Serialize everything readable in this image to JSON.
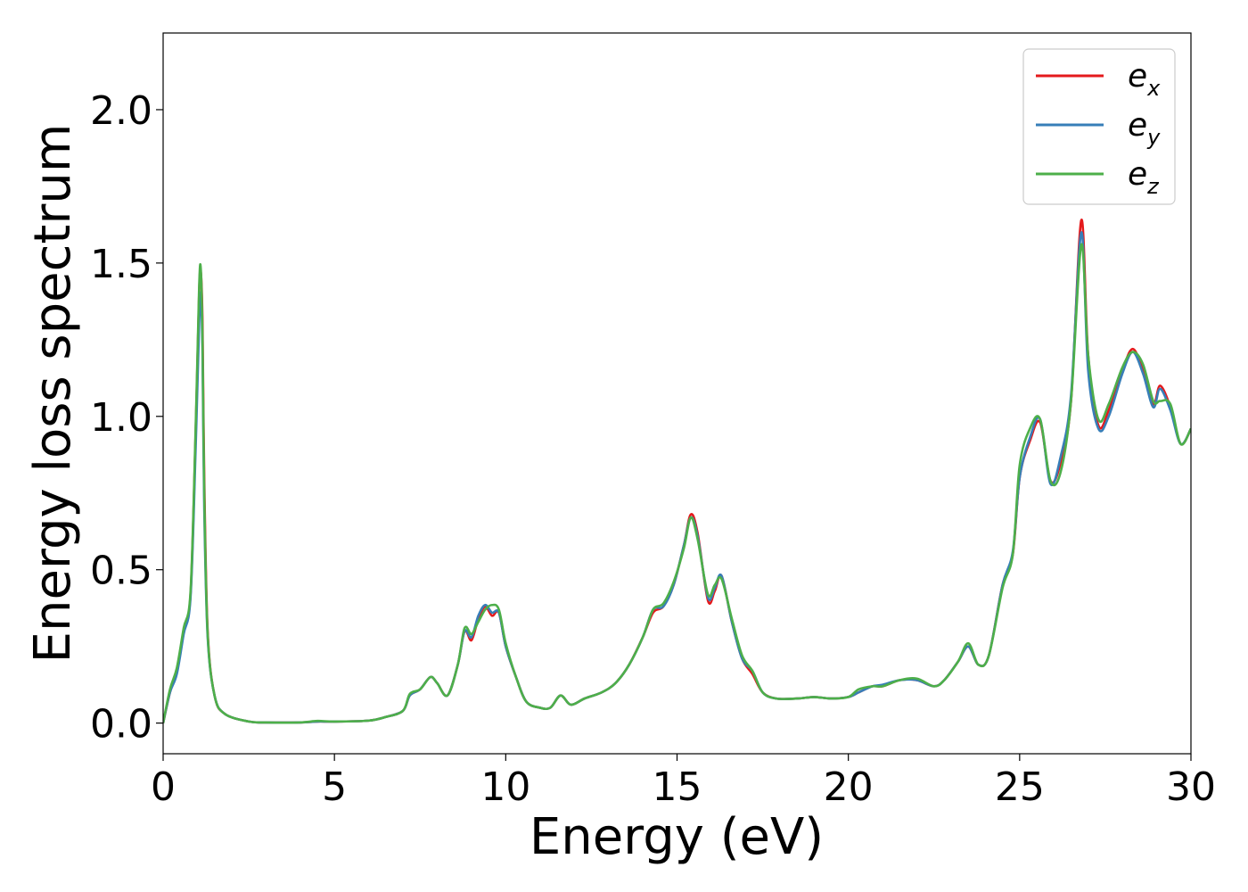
{
  "chart_data": {
    "type": "line",
    "title": "",
    "xlabel": "Energy (eV)",
    "ylabel": "Energy loss spectrum",
    "xlim": [
      0,
      30
    ],
    "ylim": [
      -0.1,
      2.25
    ],
    "xticks": [
      0,
      5,
      10,
      15,
      20,
      25,
      30
    ],
    "xtick_labels": [
      "0",
      "5",
      "10",
      "15",
      "20",
      "25",
      "30"
    ],
    "yticks": [
      0.0,
      0.5,
      1.0,
      1.5,
      2.0
    ],
    "ytick_labels": [
      "0.0",
      "0.5",
      "1.0",
      "1.5",
      "2.0"
    ],
    "grid": false,
    "legend_position": "top-right",
    "series": [
      {
        "name": "e_x",
        "base": "e",
        "sub": "x",
        "color": "#e41a1c",
        "x": [
          0,
          0.2,
          0.4,
          0.6,
          0.8,
          0.95,
          1.05,
          1.1,
          1.15,
          1.2,
          1.3,
          1.5,
          1.8,
          2.5,
          3,
          4,
          4.5,
          5,
          6,
          6.5,
          7,
          7.2,
          7.5,
          7.8,
          8,
          8.3,
          8.6,
          8.8,
          9,
          9.2,
          9.4,
          9.6,
          9.8,
          10,
          10.3,
          10.6,
          11,
          11.3,
          11.6,
          11.9,
          12.3,
          12.8,
          13.2,
          13.6,
          14,
          14.3,
          14.6,
          14.9,
          15.2,
          15.4,
          15.6,
          15.9,
          16.1,
          16.3,
          16.6,
          16.9,
          17.2,
          17.5,
          17.9,
          18.5,
          19,
          19.5,
          20,
          20.3,
          20.7,
          21,
          21.5,
          22,
          22.5,
          22.8,
          23.2,
          23.5,
          23.8,
          24.1,
          24.5,
          24.8,
          25,
          25.3,
          25.6,
          25.9,
          26.2,
          26.5,
          26.8,
          27,
          27.3,
          27.6,
          28,
          28.3,
          28.6,
          28.9,
          29.1,
          29.4,
          29.7,
          30
        ],
        "y": [
          0,
          0.1,
          0.17,
          0.3,
          0.42,
          0.95,
          1.4,
          1.47,
          1.3,
          0.8,
          0.3,
          0.09,
          0.03,
          0.005,
          0.002,
          0.002,
          0.005,
          0.005,
          0.008,
          0.02,
          0.04,
          0.09,
          0.11,
          0.15,
          0.13,
          0.09,
          0.19,
          0.3,
          0.27,
          0.34,
          0.38,
          0.35,
          0.36,
          0.25,
          0.15,
          0.07,
          0.05,
          0.05,
          0.09,
          0.06,
          0.08,
          0.1,
          0.13,
          0.19,
          0.28,
          0.36,
          0.38,
          0.45,
          0.58,
          0.68,
          0.62,
          0.4,
          0.43,
          0.48,
          0.33,
          0.21,
          0.16,
          0.1,
          0.08,
          0.08,
          0.085,
          0.08,
          0.085,
          0.1,
          0.12,
          0.12,
          0.14,
          0.14,
          0.12,
          0.14,
          0.2,
          0.25,
          0.19,
          0.22,
          0.45,
          0.55,
          0.8,
          0.92,
          0.98,
          0.79,
          0.85,
          1.05,
          1.64,
          1.2,
          0.97,
          1.02,
          1.15,
          1.22,
          1.15,
          1.04,
          1.1,
          1.03,
          0.91,
          0.96
        ]
      },
      {
        "name": "e_y",
        "base": "e",
        "sub": "y",
        "color": "#377eb8",
        "x": [
          0,
          0.2,
          0.4,
          0.6,
          0.8,
          0.95,
          1.05,
          1.1,
          1.15,
          1.2,
          1.3,
          1.5,
          1.8,
          2.5,
          3,
          4,
          4.5,
          5,
          6,
          6.5,
          7,
          7.2,
          7.5,
          7.8,
          8,
          8.3,
          8.6,
          8.8,
          9,
          9.2,
          9.4,
          9.6,
          9.8,
          10,
          10.3,
          10.6,
          11,
          11.3,
          11.6,
          11.9,
          12.3,
          12.8,
          13.2,
          13.6,
          14,
          14.3,
          14.6,
          14.9,
          15.2,
          15.4,
          15.6,
          15.9,
          16.1,
          16.3,
          16.6,
          16.9,
          17.2,
          17.5,
          17.9,
          18.5,
          19,
          19.5,
          20,
          20.3,
          20.7,
          21,
          21.5,
          22,
          22.5,
          22.8,
          23.2,
          23.5,
          23.8,
          24.1,
          24.5,
          24.8,
          25,
          25.3,
          25.6,
          25.9,
          26.2,
          26.5,
          26.8,
          27,
          27.3,
          27.6,
          28,
          28.3,
          28.6,
          28.9,
          29.1,
          29.4,
          29.7,
          30
        ],
        "y": [
          0,
          0.1,
          0.16,
          0.29,
          0.41,
          0.9,
          1.3,
          1.4,
          1.2,
          0.7,
          0.28,
          0.09,
          0.03,
          0.005,
          0.002,
          0.002,
          0.005,
          0.005,
          0.008,
          0.02,
          0.04,
          0.09,
          0.11,
          0.15,
          0.13,
          0.09,
          0.19,
          0.3,
          0.28,
          0.35,
          0.385,
          0.36,
          0.36,
          0.25,
          0.15,
          0.07,
          0.05,
          0.05,
          0.09,
          0.06,
          0.08,
          0.1,
          0.13,
          0.19,
          0.28,
          0.37,
          0.38,
          0.45,
          0.58,
          0.67,
          0.61,
          0.41,
          0.44,
          0.48,
          0.33,
          0.21,
          0.17,
          0.1,
          0.08,
          0.08,
          0.085,
          0.08,
          0.085,
          0.1,
          0.12,
          0.125,
          0.14,
          0.14,
          0.12,
          0.14,
          0.2,
          0.25,
          0.19,
          0.22,
          0.45,
          0.56,
          0.8,
          0.93,
          0.99,
          0.78,
          0.87,
          1.07,
          1.6,
          1.15,
          0.96,
          1.0,
          1.14,
          1.21,
          1.14,
          1.03,
          1.09,
          1.02,
          0.91,
          0.96
        ]
      },
      {
        "name": "e_z",
        "base": "e",
        "sub": "z",
        "color": "#4daf4a",
        "x": [
          0,
          0.2,
          0.4,
          0.6,
          0.8,
          0.95,
          1.05,
          1.1,
          1.15,
          1.2,
          1.3,
          1.5,
          1.8,
          2.5,
          3,
          4,
          4.5,
          5,
          6,
          6.5,
          7,
          7.2,
          7.5,
          7.8,
          8,
          8.3,
          8.6,
          8.8,
          9,
          9.2,
          9.4,
          9.6,
          9.8,
          10,
          10.3,
          10.6,
          11,
          11.3,
          11.6,
          11.9,
          12.3,
          12.8,
          13.2,
          13.6,
          14,
          14.3,
          14.6,
          14.9,
          15.2,
          15.4,
          15.6,
          15.9,
          16.1,
          16.3,
          16.6,
          16.9,
          17.2,
          17.5,
          17.9,
          18.5,
          19,
          19.5,
          20,
          20.3,
          20.7,
          21,
          21.5,
          22,
          22.5,
          22.8,
          23.2,
          23.5,
          23.8,
          24.1,
          24.5,
          24.8,
          25,
          25.3,
          25.6,
          25.9,
          26.2,
          26.5,
          26.8,
          27,
          27.3,
          27.6,
          28,
          28.3,
          28.6,
          28.9,
          29.1,
          29.4,
          29.7,
          30
        ],
        "y": [
          0,
          0.11,
          0.18,
          0.31,
          0.43,
          0.97,
          1.42,
          1.48,
          1.25,
          0.75,
          0.29,
          0.09,
          0.03,
          0.005,
          0.002,
          0.002,
          0.007,
          0.005,
          0.008,
          0.02,
          0.04,
          0.095,
          0.11,
          0.15,
          0.13,
          0.09,
          0.19,
          0.31,
          0.29,
          0.33,
          0.37,
          0.385,
          0.37,
          0.26,
          0.15,
          0.07,
          0.05,
          0.05,
          0.09,
          0.06,
          0.08,
          0.1,
          0.13,
          0.19,
          0.28,
          0.37,
          0.39,
          0.46,
          0.57,
          0.67,
          0.6,
          0.42,
          0.45,
          0.47,
          0.34,
          0.22,
          0.17,
          0.1,
          0.08,
          0.08,
          0.085,
          0.08,
          0.085,
          0.11,
          0.12,
          0.12,
          0.14,
          0.145,
          0.12,
          0.14,
          0.2,
          0.26,
          0.19,
          0.22,
          0.44,
          0.55,
          0.84,
          0.96,
          0.99,
          0.79,
          0.82,
          1.05,
          1.56,
          1.2,
          0.99,
          1.04,
          1.16,
          1.21,
          1.17,
          1.05,
          1.05,
          1.04,
          0.91,
          0.96
        ]
      }
    ]
  }
}
